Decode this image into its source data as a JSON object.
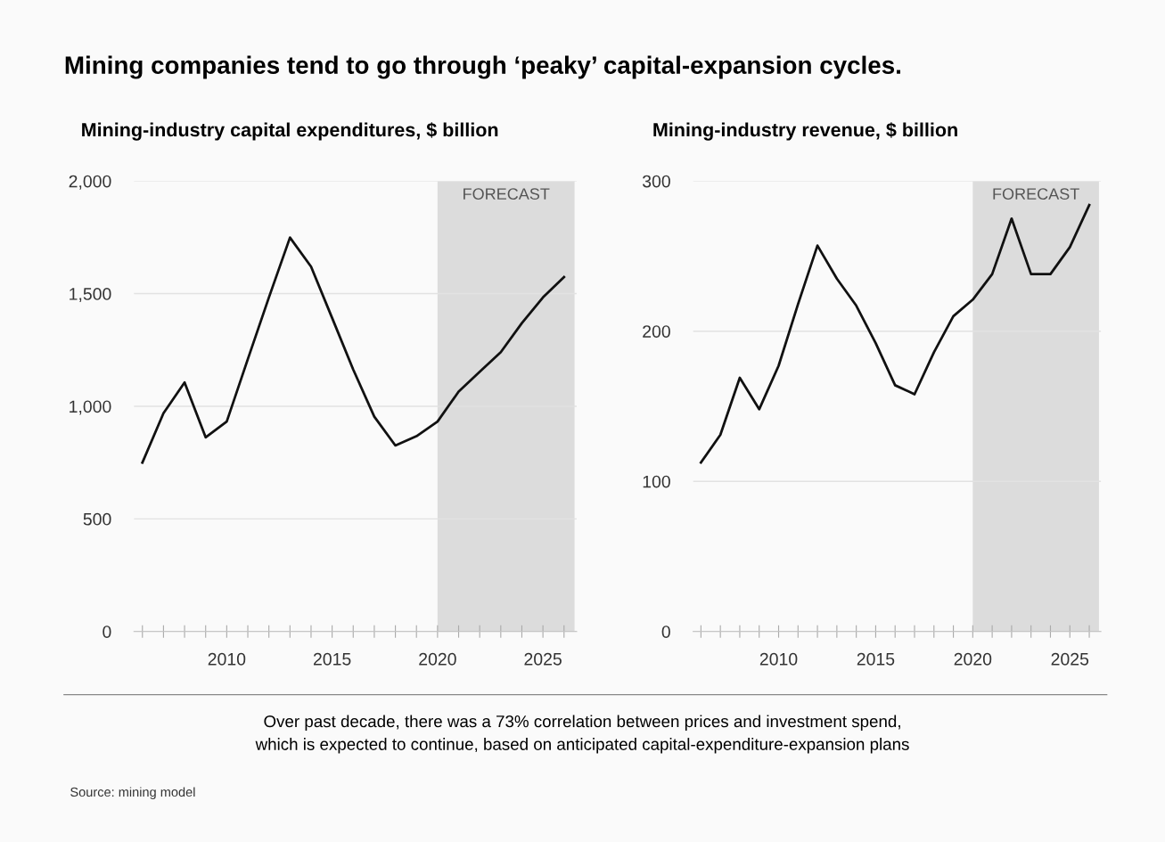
{
  "chart_data": [
    {
      "type": "line",
      "title": "Mining companies tend to go through ‘peaky’ capital-expansion cycles.",
      "subtitle": "Mining-industry capital expenditures, $ billion",
      "x": [
        2006,
        2007,
        2008,
        2009,
        2010,
        2011,
        2012,
        2013,
        2014,
        2015,
        2016,
        2017,
        2018,
        2019,
        2020,
        2021,
        2022,
        2023,
        2024,
        2025,
        2026
      ],
      "series": [
        {
          "color": "#111111",
          "values": [
            750,
            969,
            1106,
            862,
            932,
            1209,
            1483,
            1749,
            1620,
            1392,
            1163,
            954,
            826,
            867,
            932,
            1065,
            1153,
            1240,
            1369,
            1483,
            1574
          ]
        }
      ],
      "xlim": [
        2005.6,
        2026.6
      ],
      "xticks": [
        {
          "value": 2006,
          "label": null
        },
        {
          "value": 2007,
          "label": null
        },
        {
          "value": 2008,
          "label": null
        },
        {
          "value": 2009,
          "label": null
        },
        2010,
        {
          "value": 2011,
          "label": null
        },
        {
          "value": 2012,
          "label": null
        },
        {
          "value": 2013,
          "label": null
        },
        {
          "value": 2014,
          "label": null
        },
        2015,
        {
          "value": 2016,
          "label": null
        },
        {
          "value": 2017,
          "label": null
        },
        {
          "value": 2018,
          "label": null
        },
        {
          "value": 2019,
          "label": null
        },
        2020,
        {
          "value": 2021,
          "label": null
        },
        {
          "value": 2022,
          "label": null
        },
        {
          "value": 2023,
          "label": null
        },
        {
          "value": 2024,
          "label": null
        },
        2025,
        {
          "value": 2026,
          "label": null
        }
      ],
      "ylim": [
        0,
        2000
      ],
      "yticks": [
        0,
        500,
        {
          "value": 1000,
          "label": "1,000"
        },
        {
          "value": 1500,
          "label": "1,500"
        },
        {
          "value": 2000,
          "label": "2,000"
        }
      ],
      "bands": [
        {
          "axis": "x",
          "from": 2020,
          "to": 2026.5,
          "label": "FORECAST",
          "color": "#dcdcdc"
        }
      ],
      "grid": "y",
      "legend": false
    },
    {
      "type": "line",
      "subtitle": "Mining-industry revenue, $ billion",
      "x": [
        2006,
        2007,
        2008,
        2009,
        2010,
        2011,
        2012,
        2013,
        2014,
        2015,
        2016,
        2017,
        2018,
        2019,
        2020,
        2021,
        2022,
        2023,
        2024,
        2025,
        2026
      ],
      "series": [
        {
          "color": "#111111",
          "values": [
            112.5,
            131,
            169,
            148,
            177,
            218,
            257,
            235,
            217,
            192,
            164,
            158,
            186,
            210,
            221,
            238,
            275,
            238,
            238,
            256,
            284
          ]
        }
      ],
      "xlim": [
        2005.6,
        2026.6
      ],
      "xticks": [
        {
          "value": 2006,
          "label": null
        },
        {
          "value": 2007,
          "label": null
        },
        {
          "value": 2008,
          "label": null
        },
        {
          "value": 2009,
          "label": null
        },
        2010,
        {
          "value": 2011,
          "label": null
        },
        {
          "value": 2012,
          "label": null
        },
        {
          "value": 2013,
          "label": null
        },
        {
          "value": 2014,
          "label": null
        },
        2015,
        {
          "value": 2016,
          "label": null
        },
        {
          "value": 2017,
          "label": null
        },
        {
          "value": 2018,
          "label": null
        },
        {
          "value": 2019,
          "label": null
        },
        2020,
        {
          "value": 2021,
          "label": null
        },
        {
          "value": 2022,
          "label": null
        },
        {
          "value": 2023,
          "label": null
        },
        {
          "value": 2024,
          "label": null
        },
        2025,
        {
          "value": 2026,
          "label": null
        }
      ],
      "ylim": [
        0,
        300
      ],
      "yticks": [
        0,
        100,
        200,
        300
      ],
      "bands": [
        {
          "axis": "x",
          "from": 2020,
          "to": 2026.5,
          "label": "FORECAST",
          "color": "#dcdcdc"
        }
      ],
      "grid": "y",
      "legend": false,
      "annotations": [
        "Over past decade, there was a 73% correlation between prices and investment spend,\nwhich is expected to continue, based on anticipated capital-expenditure-expansion plans",
        "Source: mining model"
      ]
    }
  ]
}
